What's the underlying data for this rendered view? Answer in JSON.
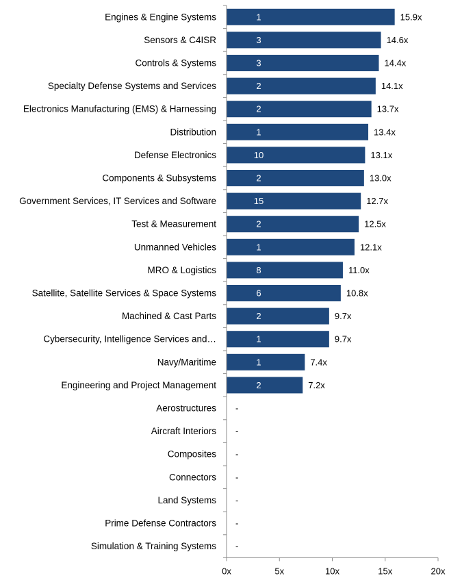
{
  "chart_data": {
    "type": "bar",
    "orientation": "horizontal",
    "categories": [
      "Engines & Engine Systems",
      "Sensors & C4ISR",
      "Controls & Systems",
      "Specialty Defense Systems and Services",
      "Electronics Manufacturing (EMS) & Harnessing",
      "Distribution",
      "Defense Electronics",
      "Components & Subsystems",
      "Government Services, IT Services and Software",
      "Test & Measurement",
      "Unmanned Vehicles",
      "MRO & Logistics",
      "Satellite, Satellite Services & Space Systems",
      "Machined & Cast Parts",
      "Cybersecurity, Intelligence Services and…",
      "Navy/Maritime",
      "Engineering and Project Management",
      "Aerostructures",
      "Aircraft Interiors",
      "Composites",
      "Connectors",
      "Land Systems",
      "Prime Defense Contractors",
      "Simulation & Training Systems"
    ],
    "values": [
      15.9,
      14.6,
      14.4,
      14.1,
      13.7,
      13.4,
      13.1,
      13.0,
      12.7,
      12.5,
      12.1,
      11.0,
      10.8,
      9.7,
      9.7,
      7.4,
      7.2,
      null,
      null,
      null,
      null,
      null,
      null,
      null
    ],
    "value_labels": [
      "15.9x",
      "14.6x",
      "14.4x",
      "14.1x",
      "13.7x",
      "13.4x",
      "13.1x",
      "13.0x",
      "12.7x",
      "12.5x",
      "12.1x",
      "11.0x",
      "10.8x",
      "9.7x",
      "9.7x",
      "7.4x",
      "7.2x",
      "-",
      "-",
      "-",
      "-",
      "-",
      "-",
      "-"
    ],
    "counts": [
      "1",
      "3",
      "3",
      "2",
      "2",
      "1",
      "10",
      "2",
      "15",
      "2",
      "1",
      "8",
      "6",
      "2",
      "1",
      "1",
      "2",
      "",
      "",
      "",
      "",
      "",
      "",
      ""
    ],
    "xlim": [
      0,
      20
    ],
    "x_ticks": [
      "0x",
      "5x",
      "10x",
      "15x",
      "20x"
    ],
    "grid": false,
    "bar_color": "#1f497d"
  }
}
